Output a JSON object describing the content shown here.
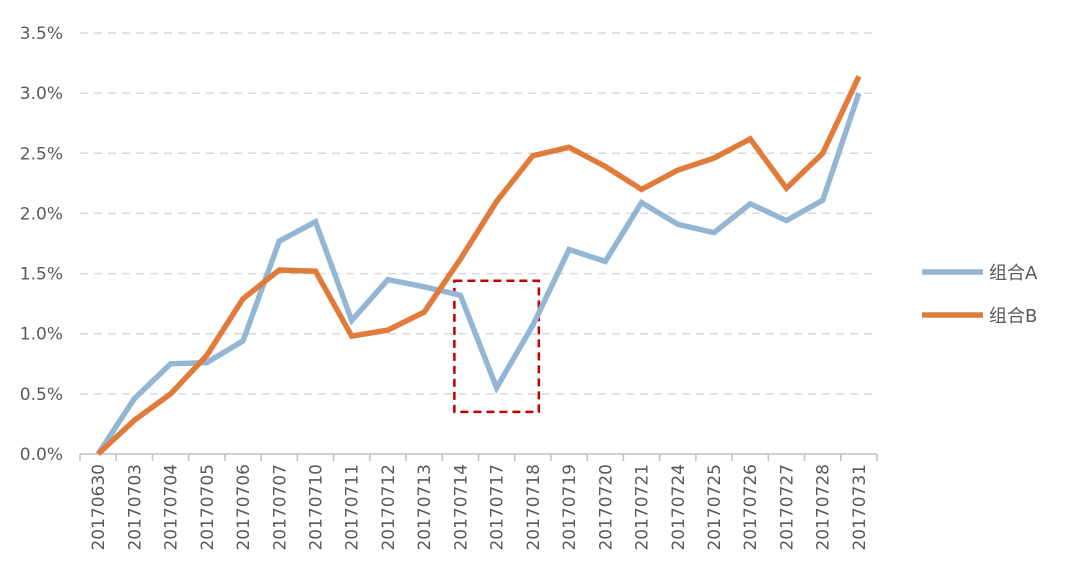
{
  "chart_data": {
    "type": "line",
    "title": "",
    "xlabel": "",
    "ylabel": "",
    "ylim": [
      0,
      3.5
    ],
    "y_ticks": [
      "0.0%",
      "0.5%",
      "1.0%",
      "1.5%",
      "2.0%",
      "2.5%",
      "3.0%",
      "3.5%"
    ],
    "grid": "horizontal-dashed",
    "legend_position": "right",
    "categories": [
      "20170630",
      "20170703",
      "20170704",
      "20170705",
      "20170706",
      "20170707",
      "20170710",
      "20170711",
      "20170712",
      "20170713",
      "20170714",
      "20170717",
      "20170718",
      "20170719",
      "20170720",
      "20170721",
      "20170724",
      "20170725",
      "20170726",
      "20170727",
      "20170728",
      "20170731"
    ],
    "series": [
      {
        "name": "组合A",
        "color": "#93B6D4",
        "values": [
          0.0,
          0.46,
          0.75,
          0.76,
          0.94,
          1.77,
          1.93,
          1.11,
          1.45,
          1.39,
          1.32,
          0.55,
          1.07,
          1.7,
          1.6,
          2.09,
          1.91,
          1.84,
          2.08,
          1.94,
          2.11,
          3.0
        ]
      },
      {
        "name": "组合B",
        "color": "#E07B3C",
        "values": [
          0.0,
          0.28,
          0.5,
          0.82,
          1.29,
          1.53,
          1.52,
          0.98,
          1.03,
          1.18,
          1.62,
          2.1,
          2.48,
          2.55,
          2.39,
          2.2,
          2.36,
          2.46,
          2.62,
          2.21,
          2.5,
          3.14
        ]
      }
    ],
    "annotations": [
      {
        "type": "dashed-rectangle",
        "color": "#C00000",
        "x_from": "20170714",
        "x_to": "20170718",
        "y_from": 0.35,
        "y_to": 1.44
      }
    ]
  }
}
